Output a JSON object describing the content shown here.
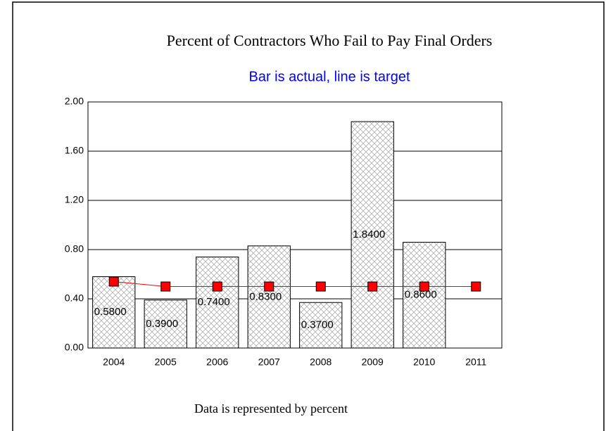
{
  "chart_data": {
    "type": "bar",
    "title": "Percent of Contractors Who Fail to Pay Final Orders",
    "subtitle": "Bar is actual, line is target",
    "footnote": "Data is represented by percent",
    "categories": [
      "2004",
      "2005",
      "2006",
      "2007",
      "2008",
      "2009",
      "2010",
      "2011"
    ],
    "series": [
      {
        "type": "bar",
        "color": "#b0b0b0",
        "values": [
          0.58,
          0.39,
          0.74,
          0.83,
          0.37,
          1.84,
          0.86,
          null
        ],
        "value_labels": [
          "0.5800",
          "0.3900",
          "0.7400",
          "0.8300",
          "0.3700",
          "1.8400",
          "0.8600",
          null
        ]
      },
      {
        "type": "line",
        "color": "#ff0000",
        "values": [
          0.54,
          0.5,
          0.5,
          0.5,
          0.5,
          0.5,
          0.5,
          0.5
        ]
      }
    ],
    "ylim": [
      0,
      2
    ],
    "yticks": [
      {
        "value": 0,
        "label": "0.00"
      },
      {
        "value": 0.4,
        "label": "0.40"
      },
      {
        "value": 0.8,
        "label": "0.80"
      },
      {
        "value": 1.2,
        "label": "1.20"
      },
      {
        "value": 1.6,
        "label": "1.60"
      },
      {
        "value": 2,
        "label": "2.00"
      }
    ],
    "grid": true
  }
}
